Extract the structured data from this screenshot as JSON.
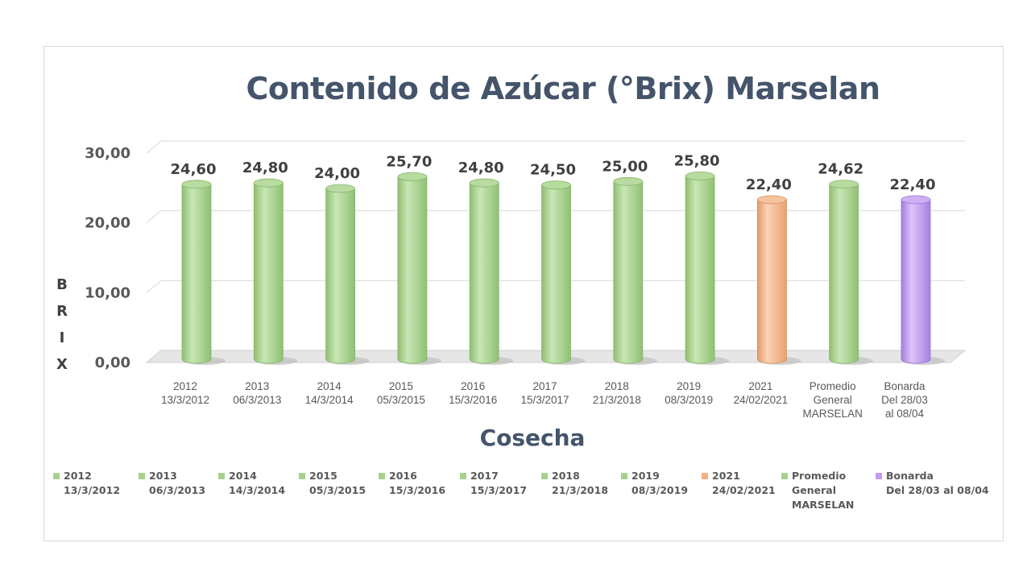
{
  "chart_data": {
    "type": "bar",
    "title": "Contenido de Azúcar (°Brix) Marselan",
    "xlabel": "Cosecha",
    "ylabel": "BRIX",
    "ylim": [
      0,
      30
    ],
    "yticks": [
      "0,00",
      "10,00",
      "20,00",
      "30,00"
    ],
    "grid": true,
    "legend_position": "bottom",
    "categories": [
      {
        "line1": "2012",
        "line2": "13/3/2012",
        "line3": ""
      },
      {
        "line1": "2013",
        "line2": "06/3/2013",
        "line3": ""
      },
      {
        "line1": "2014",
        "line2": "14/3/2014",
        "line3": ""
      },
      {
        "line1": "2015",
        "line2": "05/3/2015",
        "line3": ""
      },
      {
        "line1": "2016",
        "line2": "15/3/2016",
        "line3": ""
      },
      {
        "line1": "2017",
        "line2": "15/3/2017",
        "line3": ""
      },
      {
        "line1": "2018",
        "line2": "21/3/2018",
        "line3": ""
      },
      {
        "line1": "2019",
        "line2": "08/3/2019",
        "line3": ""
      },
      {
        "line1": "2021",
        "line2": "24/02/2021",
        "line3": ""
      },
      {
        "line1": "Promedio",
        "line2": "General",
        "line3": "MARSELAN"
      },
      {
        "line1": "Bonarda",
        "line2": "Del 28/03",
        "line3": "al 08/04"
      }
    ],
    "values": [
      24.6,
      24.8,
      24.0,
      25.7,
      24.8,
      24.5,
      25.0,
      25.8,
      22.4,
      24.62,
      22.4
    ],
    "value_labels": [
      "24,60",
      "24,80",
      "24,00",
      "25,70",
      "24,80",
      "24,50",
      "25,00",
      "25,80",
      "22,40",
      "24,62",
      "22,40"
    ],
    "colors": [
      "#a9d18e",
      "#a9d18e",
      "#a9d18e",
      "#a9d18e",
      "#a9d18e",
      "#a9d18e",
      "#a9d18e",
      "#a9d18e",
      "#f4b183",
      "#a9d18e",
      "#c39bf0"
    ],
    "legend": [
      {
        "line1": "2012",
        "line2": "13/3/2012",
        "line3": "",
        "color": "#a9d18e"
      },
      {
        "line1": "2013",
        "line2": "06/3/2013",
        "line3": "",
        "color": "#a9d18e"
      },
      {
        "line1": "2014",
        "line2": "14/3/2014",
        "line3": "",
        "color": "#a9d18e"
      },
      {
        "line1": "2015",
        "line2": "05/3/2015",
        "line3": "",
        "color": "#a9d18e"
      },
      {
        "line1": "2016",
        "line2": "15/3/2016",
        "line3": "",
        "color": "#a9d18e"
      },
      {
        "line1": "2017",
        "line2": "15/3/2017",
        "line3": "",
        "color": "#a9d18e"
      },
      {
        "line1": "2018",
        "line2": "21/3/2018",
        "line3": "",
        "color": "#a9d18e"
      },
      {
        "line1": "2019",
        "line2": "08/3/2019",
        "line3": "",
        "color": "#a9d18e"
      },
      {
        "line1": "2021",
        "line2": "24/02/2021",
        "line3": "",
        "color": "#f4b183"
      },
      {
        "line1": "Promedio",
        "line2": "General",
        "line3": "MARSELAN",
        "color": "#a9d18e"
      },
      {
        "line1": "Bonarda",
        "line2": "Del 28/03 al 08/04",
        "line3": "",
        "color": "#c39bf0"
      }
    ]
  }
}
